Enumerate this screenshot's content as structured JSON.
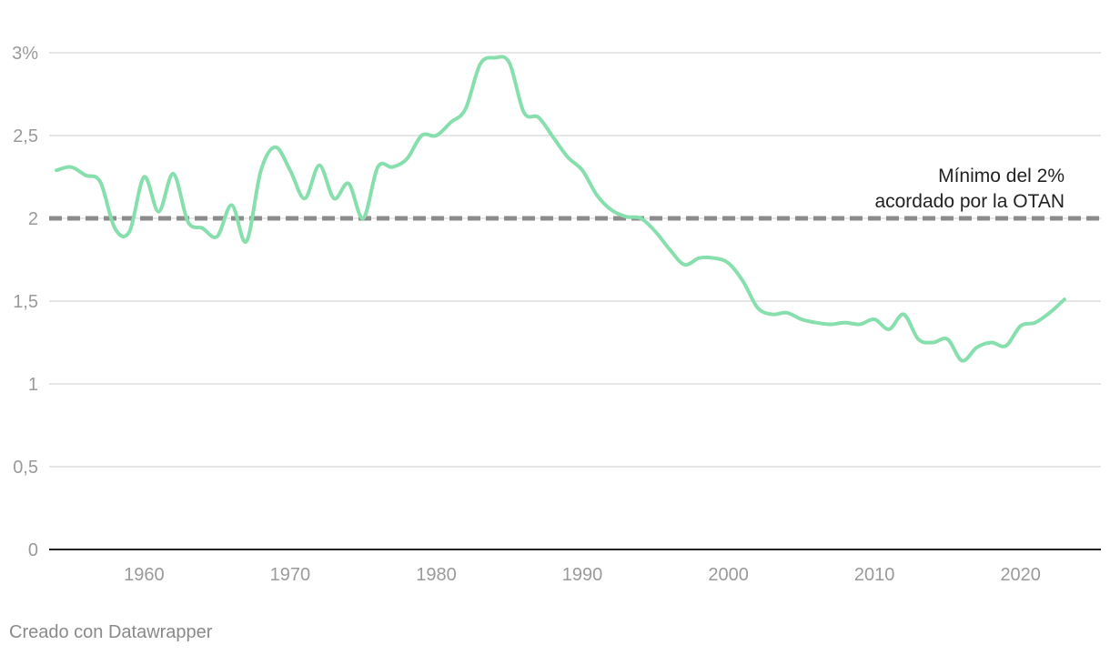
{
  "footer": {
    "credit": "Creado con Datawrapper"
  },
  "colors": {
    "series": "#86dfad",
    "threshold": "#8c8c8c",
    "grid": "#dedede",
    "axis": "#222222",
    "tick_text": "#9a9a9a"
  },
  "chart_data": {
    "type": "line",
    "title": "",
    "xlabel": "",
    "ylabel": "",
    "xlim": [
      1953.5,
      2025.5
    ],
    "ylim": [
      0,
      3
    ],
    "grid": true,
    "x_ticks": [
      {
        "value": 1960,
        "label": "1960"
      },
      {
        "value": 1970,
        "label": "1970"
      },
      {
        "value": 1980,
        "label": "1980"
      },
      {
        "value": 1990,
        "label": "1990"
      },
      {
        "value": 2000,
        "label": "2000"
      },
      {
        "value": 2010,
        "label": "2010"
      },
      {
        "value": 2020,
        "label": "2020"
      }
    ],
    "y_ticks": [
      {
        "value": 0,
        "label": "0"
      },
      {
        "value": 0.5,
        "label": "0,5"
      },
      {
        "value": 1,
        "label": "1"
      },
      {
        "value": 1.5,
        "label": "1,5"
      },
      {
        "value": 2,
        "label": "2"
      },
      {
        "value": 2.5,
        "label": "2,5"
      },
      {
        "value": 3,
        "label": "3%"
      }
    ],
    "series": [
      {
        "x": [
          1954,
          1955,
          1956,
          1957,
          1958,
          1959,
          1960,
          1961,
          1962,
          1963,
          1964,
          1965,
          1966,
          1967,
          1968,
          1969,
          1970,
          1971,
          1972,
          1973,
          1974,
          1975,
          1976,
          1977,
          1978,
          1979,
          1980,
          1981,
          1982,
          1983,
          1984,
          1985,
          1986,
          1987,
          1988,
          1989,
          1990,
          1991,
          1992,
          1993,
          1994,
          1995,
          1996,
          1997,
          1998,
          1999,
          2000,
          2001,
          2002,
          2003,
          2004,
          2005,
          2006,
          2007,
          2008,
          2009,
          2010,
          2011,
          2012,
          2013,
          2014,
          2015,
          2016,
          2017,
          2018,
          2019,
          2020,
          2021,
          2022,
          2023
        ],
        "values": [
          2.29,
          2.31,
          2.26,
          2.22,
          1.94,
          1.92,
          2.25,
          2.04,
          2.27,
          1.98,
          1.94,
          1.89,
          2.08,
          1.86,
          2.29,
          2.43,
          2.29,
          2.12,
          2.32,
          2.12,
          2.21,
          2.0,
          2.31,
          2.31,
          2.36,
          2.5,
          2.5,
          2.58,
          2.66,
          2.93,
          2.97,
          2.94,
          2.64,
          2.61,
          2.49,
          2.37,
          2.29,
          2.14,
          2.05,
          2.01,
          2.0,
          1.92,
          1.81,
          1.72,
          1.76,
          1.76,
          1.73,
          1.62,
          1.46,
          1.42,
          1.43,
          1.39,
          1.37,
          1.36,
          1.37,
          1.36,
          1.39,
          1.33,
          1.42,
          1.27,
          1.25,
          1.27,
          1.14,
          1.22,
          1.25,
          1.23,
          1.35,
          1.37,
          1.43,
          1.51
        ]
      }
    ],
    "threshold": {
      "value": 2,
      "label_line1": "Mínimo del 2%",
      "label_line2": "acordado por la OTAN"
    }
  }
}
